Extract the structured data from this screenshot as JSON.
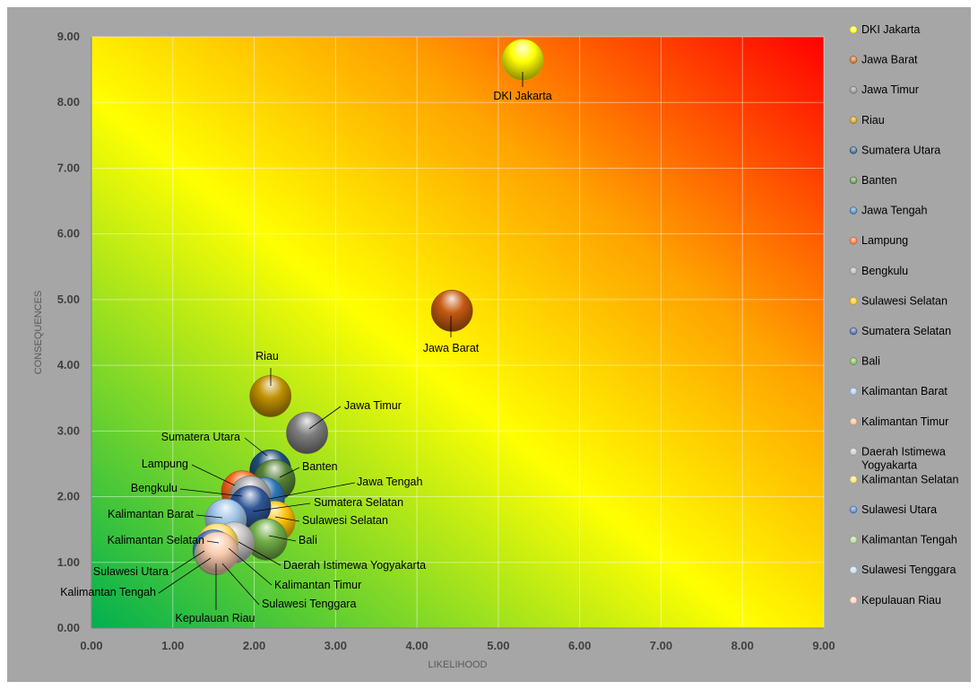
{
  "chart_data": {
    "type": "bubble",
    "xlabel": "LIKELIHOOD",
    "ylabel": "CONSEQUENCES",
    "xlim": [
      0,
      9
    ],
    "ylim": [
      0,
      9
    ],
    "x_ticks": [
      "0.00",
      "1.00",
      "2.00",
      "3.00",
      "4.00",
      "5.00",
      "6.00",
      "7.00",
      "8.00",
      "9.00"
    ],
    "y_ticks": [
      "0.00",
      "1.00",
      "2.00",
      "3.00",
      "4.00",
      "5.00",
      "6.00",
      "7.00",
      "8.00",
      "9.00"
    ],
    "grid": true,
    "background": "diagonal gradient green (bottom-left) to yellow to orange to red (top-right)",
    "legend_position": "right",
    "series": [
      {
        "name": "DKI Jakarta",
        "x": 5.3,
        "y": 8.65,
        "color": "#ffff00"
      },
      {
        "name": "Jawa Barat",
        "x": 4.43,
        "y": 4.83,
        "color": "#c55a11"
      },
      {
        "name": "Jawa Timur",
        "x": 2.65,
        "y": 2.97,
        "color": "#7f7f7f"
      },
      {
        "name": "Riau",
        "x": 2.2,
        "y": 3.53,
        "color": "#bf9000"
      },
      {
        "name": "Sumatera Utara",
        "x": 2.2,
        "y": 2.4,
        "color": "#1f4e79"
      },
      {
        "name": "Banten",
        "x": 2.25,
        "y": 2.25,
        "color": "#548235"
      },
      {
        "name": "Jawa Tengah",
        "x": 2.12,
        "y": 1.98,
        "color": "#2e75b6"
      },
      {
        "name": "Lampung",
        "x": 1.85,
        "y": 2.08,
        "color": "#f4641e"
      },
      {
        "name": "Bengkulu",
        "x": 1.95,
        "y": 2.0,
        "color": "#a5a5a5"
      },
      {
        "name": "Sulawesi Selatan",
        "x": 2.25,
        "y": 1.62,
        "color": "#ffc000"
      },
      {
        "name": "Sumatera Selatan",
        "x": 1.95,
        "y": 1.85,
        "color": "#2f5597"
      },
      {
        "name": "Bali",
        "x": 2.15,
        "y": 1.35,
        "color": "#70ad47"
      },
      {
        "name": "Kalimantan Barat",
        "x": 1.65,
        "y": 1.65,
        "color": "#9dc3e6"
      },
      {
        "name": "Kalimantan Timur",
        "x": 1.55,
        "y": 1.2,
        "color": "#f4b183"
      },
      {
        "name": "Daerah Istimewa Yogyakarta",
        "x": 1.75,
        "y": 1.3,
        "color": "#bfbfbf"
      },
      {
        "name": "Kalimantan Selatan",
        "x": 1.55,
        "y": 1.28,
        "color": "#ffd966"
      },
      {
        "name": "Sulawesi Utara",
        "x": 1.5,
        "y": 1.18,
        "color": "#4472c4"
      },
      {
        "name": "Kalimantan Tengah",
        "x": 1.52,
        "y": 1.12,
        "color": "#a9d18e"
      },
      {
        "name": "Sulawesi Tenggara",
        "x": 1.55,
        "y": 1.15,
        "color": "#bdd7ee"
      },
      {
        "name": "Kepulauan Riau",
        "x": 1.55,
        "y": 1.15,
        "color": "#f8cbad"
      }
    ]
  },
  "legend": {
    "items": [
      {
        "label": "DKI Jakarta",
        "color": "#ffff00"
      },
      {
        "label": "Jawa Barat",
        "color": "#c55a11"
      },
      {
        "label": "Jawa Timur",
        "color": "#7f7f7f"
      },
      {
        "label": "Riau",
        "color": "#bf9000"
      },
      {
        "label": "Sumatera Utara",
        "color": "#1f4e79"
      },
      {
        "label": "Banten",
        "color": "#548235"
      },
      {
        "label": "Jawa Tengah",
        "color": "#2e75b6"
      },
      {
        "label": "Lampung",
        "color": "#f4641e"
      },
      {
        "label": "Bengkulu",
        "color": "#a5a5a5"
      },
      {
        "label": "Sulawesi Selatan",
        "color": "#ffc000"
      },
      {
        "label": "Sumatera Selatan",
        "color": "#2f5597"
      },
      {
        "label": "Bali",
        "color": "#70ad47"
      },
      {
        "label": "Kalimantan Barat",
        "color": "#9dc3e6"
      },
      {
        "label": "Kalimantan Timur",
        "color": "#f4b183"
      },
      {
        "label": [
          "Daerah Istimewa",
          "Yogyakarta"
        ],
        "color": "#bfbfbf"
      },
      {
        "label": "Kalimantan Selatan",
        "color": "#ffd966"
      },
      {
        "label": "Sulawesi Utara",
        "color": "#4472c4"
      },
      {
        "label": "Kalimantan Tengah",
        "color": "#a9d18e"
      },
      {
        "label": "Sulawesi Tenggara",
        "color": "#bdd7ee"
      },
      {
        "label": "Kepulauan Riau",
        "color": "#f8cbad"
      }
    ]
  }
}
